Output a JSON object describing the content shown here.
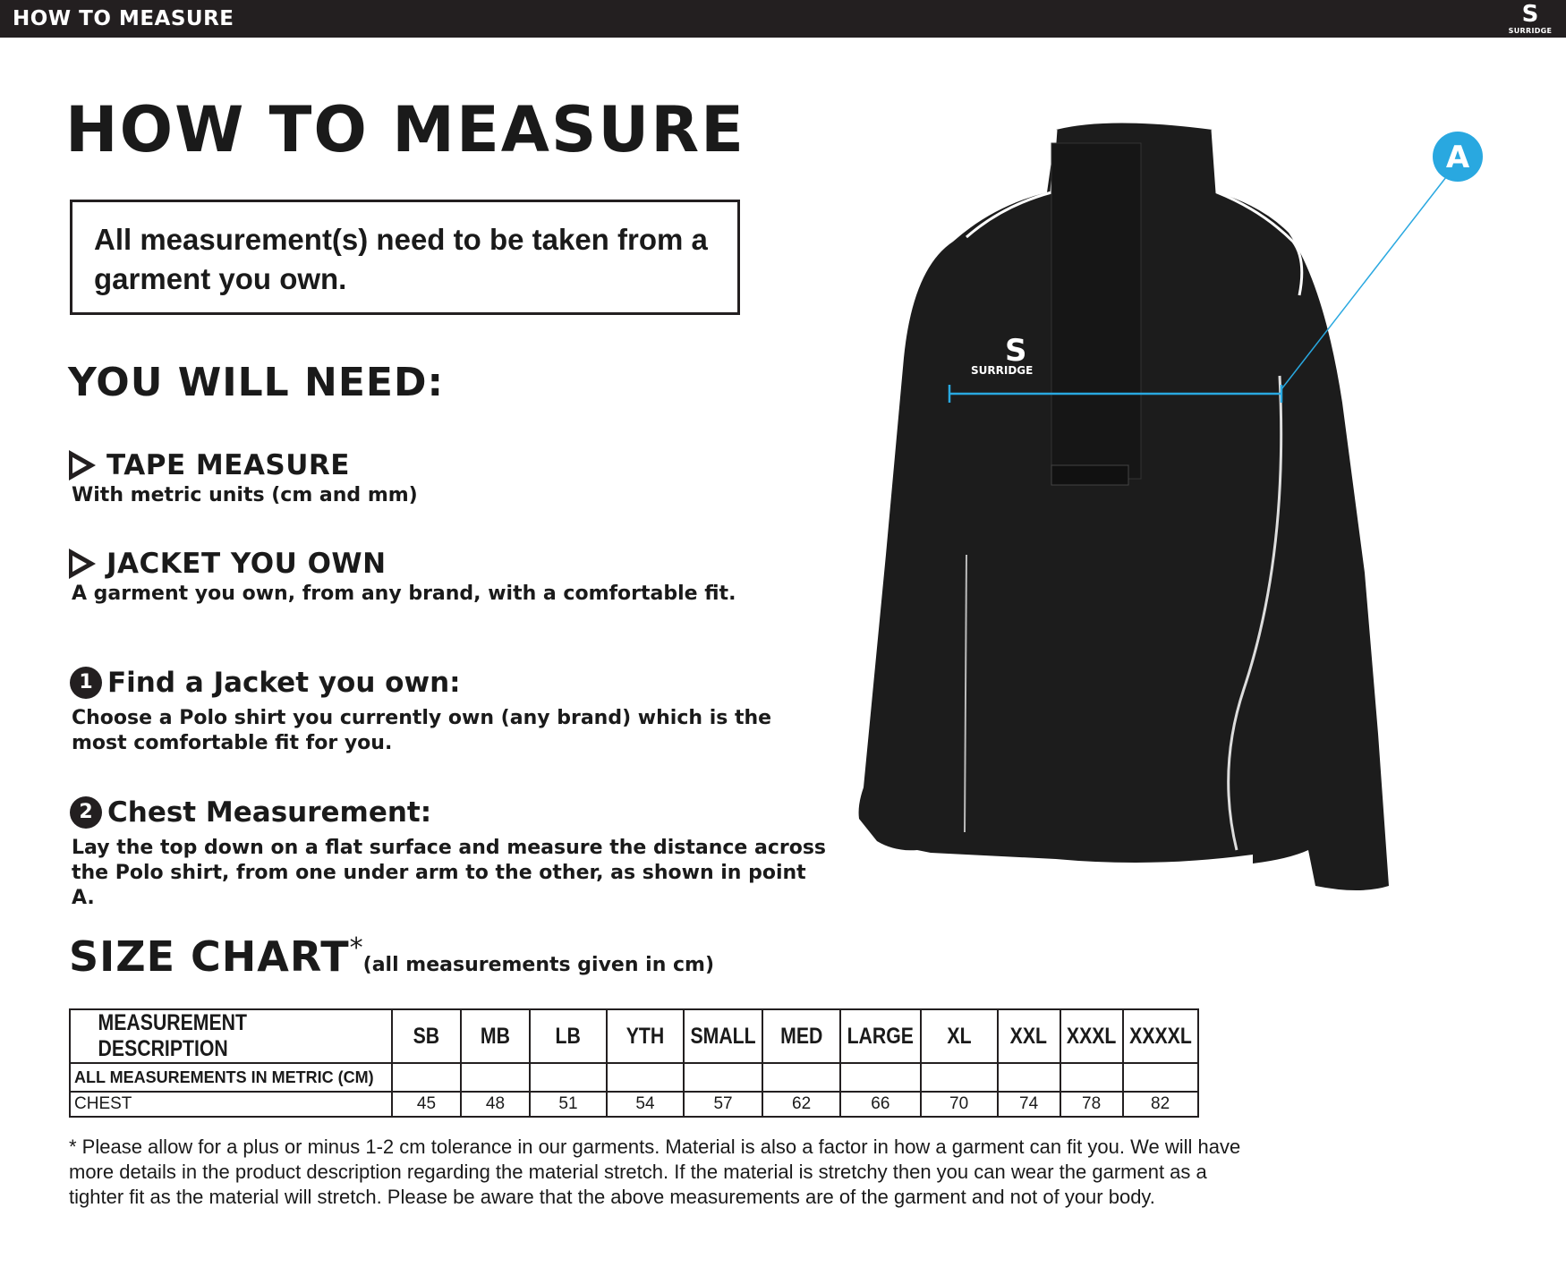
{
  "topbar": {
    "title": "HOW TO MEASURE",
    "logo_text": "SURRIDGE"
  },
  "title": "HOW TO MEASURE",
  "note": "All measurement(s) need to be taken from a garment you own.",
  "need": {
    "heading": "YOU WILL NEED:",
    "items": [
      {
        "title": "TAPE MEASURE",
        "desc": "With metric units (cm and mm)"
      },
      {
        "title": "JACKET YOU OWN",
        "desc": "A garment you own, from any brand, with a comfortable fit."
      }
    ]
  },
  "steps": [
    {
      "num": "1",
      "title": "Find a Jacket you own:",
      "desc": "Choose a Polo shirt you currently own (any brand) which is the most comfortable fit for you."
    },
    {
      "num": "2",
      "title": "Chest Measurement:",
      "desc": "Lay the top down on a flat surface and measure the distance across the Polo shirt, from one under arm to the other, as shown in point A."
    }
  ],
  "image": {
    "point_label": "A",
    "accent": "#29a8e0",
    "logo_text": "SURRIDGE"
  },
  "size_chart": {
    "heading": "SIZE CHART",
    "star": "*",
    "units": "(all measurements given in cm)",
    "header": [
      "MEASUREMENT DESCRIPTION",
      "SB",
      "MB",
      "LB",
      "YTH",
      "SMALL",
      "MED",
      "LARGE",
      "XL",
      "XXL",
      "XXXL",
      "XXXXL"
    ],
    "rows": [
      [
        "ALL MEASUREMENTS IN METRIC (CM)",
        "",
        "",
        "",
        "",
        "",
        "",
        "",
        "",
        "",
        "",
        ""
      ],
      [
        "CHEST",
        "45",
        "48",
        "51",
        "54",
        "57",
        "62",
        "66",
        "70",
        "74",
        "78",
        "82"
      ]
    ]
  },
  "footnote": "* Please allow for a plus or minus 1-2 cm tolerance in our garments. Material is also a factor in how a garment can fit you. We will have more details in the product description regarding the material stretch.  If the material is stretchy then you can wear the garment as a tighter fit as the material will stretch.  Please be aware that the above measurements are of the garment and not of your body."
}
